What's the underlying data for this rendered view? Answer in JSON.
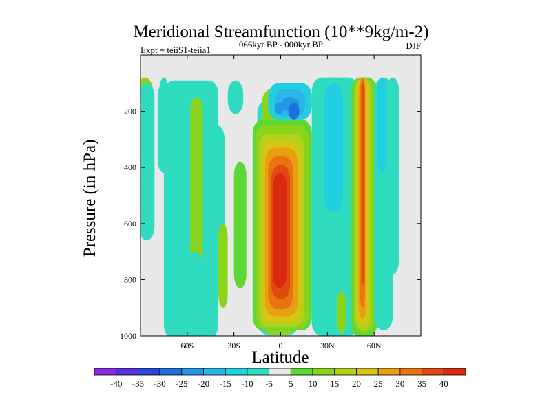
{
  "chart_data": {
    "type": "contour",
    "title": "Meridional Streamfunction (10**9kg/m-2)",
    "subtitle": "066kyr BP - 000kyr BP",
    "left_label": "Expt = teiiS1-teiia1",
    "right_label": "DJF",
    "xlabel": "Latitude",
    "ylabel": "Pressure (in hPa)",
    "xlim": [
      -90,
      90
    ],
    "ylim": [
      1000,
      0
    ],
    "x_ticks": [
      {
        "value": -60,
        "label": "60S"
      },
      {
        "value": -30,
        "label": "30S"
      },
      {
        "value": 0,
        "label": "0"
      },
      {
        "value": 30,
        "label": "30N"
      },
      {
        "value": 60,
        "label": "60N"
      }
    ],
    "y_ticks": [
      {
        "value": 200,
        "label": "200"
      },
      {
        "value": 400,
        "label": "400"
      },
      {
        "value": 600,
        "label": "600"
      },
      {
        "value": 800,
        "label": "800"
      },
      {
        "value": 1000,
        "label": "1000"
      }
    ],
    "colorbar": {
      "labels": [
        "-40",
        "-35",
        "-30",
        "-25",
        "-20",
        "-15",
        "-10",
        "-5",
        "5",
        "10",
        "15",
        "20",
        "25",
        "30",
        "35",
        "40"
      ],
      "colors": [
        "#8a2be2",
        "#5a31dc",
        "#2b46d8",
        "#1f6fe0",
        "#2596e6",
        "#2bb6e8",
        "#22cfe0",
        "#2fdcc0",
        "#e8e8e8",
        "#5ed836",
        "#8ad41c",
        "#b6d01a",
        "#d8c414",
        "#e8a010",
        "#e87410",
        "#e04a10",
        "#d82a10"
      ]
    },
    "blobs": [
      {
        "lat": [
          -92,
          -82
        ],
        "p": [
          80,
          350
        ],
        "level": 10
      },
      {
        "lat": [
          -91,
          -81
        ],
        "p": [
          100,
          660
        ],
        "level": -5
      },
      {
        "lat": [
          -79,
          -71
        ],
        "p": [
          100,
          420
        ],
        "level": -5
      },
      {
        "lat": [
          -78,
          -72
        ],
        "p": [
          80,
          180
        ],
        "level": -5
      },
      {
        "lat": [
          -75,
          -40
        ],
        "p": [
          90,
          1010
        ],
        "level": -5
      },
      {
        "lat": [
          -58,
          -50
        ],
        "p": [
          150,
          780
        ],
        "level": 10
      },
      {
        "lat": [
          -34,
          -24
        ],
        "p": [
          90,
          210
        ],
        "level": -5
      },
      {
        "lat": [
          -46,
          -36
        ],
        "p": [
          250,
          780
        ],
        "level": -5
      },
      {
        "lat": [
          -60,
          -50
        ],
        "p": [
          700,
          1000
        ],
        "level": -5
      },
      {
        "lat": [
          -15,
          12
        ],
        "p": [
          160,
          995
        ],
        "level": -5
      },
      {
        "lat": [
          -12,
          10
        ],
        "p": [
          120,
          995
        ],
        "level": 10
      },
      {
        "lat": [
          -40,
          -34
        ],
        "p": [
          600,
          900
        ],
        "level": 10
      },
      {
        "lat": [
          -30,
          -22
        ],
        "p": [
          380,
          830
        ],
        "level": 5
      },
      {
        "lat": [
          -18,
          20
        ],
        "p": [
          230,
          980
        ],
        "level": 5
      },
      {
        "lat": [
          -16,
          18
        ],
        "p": [
          250,
          975
        ],
        "level": 10
      },
      {
        "lat": [
          -14,
          15
        ],
        "p": [
          280,
          965
        ],
        "level": 15
      },
      {
        "lat": [
          -12,
          13
        ],
        "p": [
          310,
          950
        ],
        "level": 20
      },
      {
        "lat": [
          -10,
          11
        ],
        "p": [
          330,
          930
        ],
        "level": 25
      },
      {
        "lat": [
          -8,
          8
        ],
        "p": [
          360,
          905
        ],
        "level": 30
      },
      {
        "lat": [
          -6,
          6
        ],
        "p": [
          390,
          870
        ],
        "level": 35
      },
      {
        "lat": [
          -5,
          4
        ],
        "p": [
          420,
          830
        ],
        "level": 40
      },
      {
        "lat": [
          -8,
          20
        ],
        "p": [
          100,
          230
        ],
        "level": -10
      },
      {
        "lat": [
          -4,
          16
        ],
        "p": [
          120,
          220
        ],
        "level": -15
      },
      {
        "lat": [
          0,
          12
        ],
        "p": [
          150,
          200
        ],
        "level": -20
      },
      {
        "lat": [
          5,
          12
        ],
        "p": [
          170,
          230
        ],
        "level": -25
      },
      {
        "lat": [
          -4,
          2
        ],
        "p": [
          170,
          210
        ],
        "level": -20
      },
      {
        "lat": [
          20,
          50
        ],
        "p": [
          80,
          1000
        ],
        "level": -5
      },
      {
        "lat": [
          28,
          40
        ],
        "p": [
          100,
          560
        ],
        "level": -10
      },
      {
        "lat": [
          45,
          62
        ],
        "p": [
          80,
          1005
        ],
        "level": 5
      },
      {
        "lat": [
          47,
          60
        ],
        "p": [
          80,
          990
        ],
        "level": 10
      },
      {
        "lat": [
          48,
          58
        ],
        "p": [
          80,
          980
        ],
        "level": 15
      },
      {
        "lat": [
          49,
          56
        ],
        "p": [
          80,
          960
        ],
        "level": 20
      },
      {
        "lat": [
          50,
          55
        ],
        "p": [
          80,
          940
        ],
        "level": 25
      },
      {
        "lat": [
          51,
          54
        ],
        "p": [
          80,
          900
        ],
        "level": 30
      },
      {
        "lat": [
          52,
          54
        ],
        "p": [
          100,
          820
        ],
        "level": 35
      },
      {
        "lat": [
          60,
          72
        ],
        "p": [
          80,
          980
        ],
        "level": -5
      },
      {
        "lat": [
          62,
          68
        ],
        "p": [
          80,
          420
        ],
        "level": -10
      },
      {
        "lat": [
          68,
          76
        ],
        "p": [
          80,
          780
        ],
        "level": -5
      },
      {
        "lat": [
          36,
          42
        ],
        "p": [
          840,
          990
        ],
        "level": 10
      },
      {
        "lat": [
          28,
          34
        ],
        "p": [
          80,
          110
        ],
        "level": -5
      }
    ]
  }
}
